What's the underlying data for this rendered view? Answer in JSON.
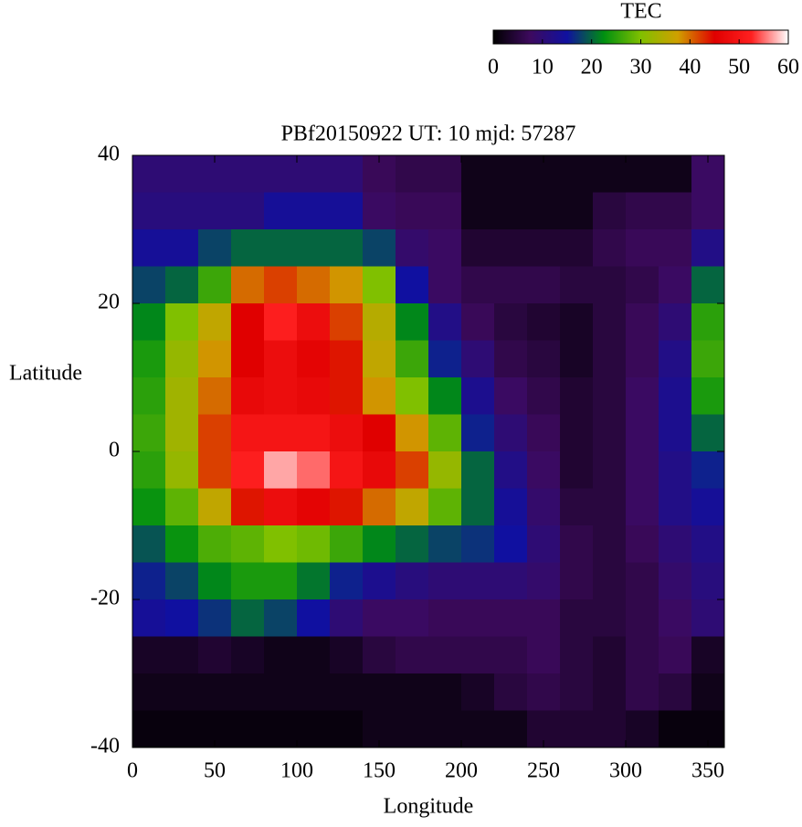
{
  "chart_data": {
    "type": "heatmap",
    "title": "PBf20150922  UT: 10  mjd: 57287",
    "xlabel": "Longitude",
    "ylabel": "Latitude",
    "colorbar_label": "TEC",
    "xlim": [
      0,
      360
    ],
    "ylim": [
      -40,
      40
    ],
    "xticks": [
      0,
      50,
      100,
      150,
      200,
      250,
      300,
      350
    ],
    "yticks": [
      -40,
      -20,
      0,
      20,
      40
    ],
    "zlim": [
      0,
      60
    ],
    "zticks": [
      0,
      10,
      20,
      30,
      40,
      50,
      60
    ],
    "colors": [
      "#000000",
      "#3d0a5e",
      "#1010a0",
      "#009010",
      "#80c000",
      "#d0a000",
      "#e00000",
      "#ff2020",
      "#ffffff"
    ],
    "x": [
      10,
      30,
      50,
      70,
      90,
      110,
      130,
      150,
      170,
      190,
      210,
      230,
      250,
      270,
      290,
      310,
      330,
      350
    ],
    "y": [
      37.5,
      32.5,
      27.5,
      22.5,
      17.5,
      12.5,
      7.5,
      2.5,
      -2.5,
      -7.5,
      -12.5,
      -17.5,
      -22.5,
      -27.5,
      -32.5,
      -37.5
    ],
    "z": [
      [
        10,
        10,
        10,
        10,
        10,
        10,
        10,
        7,
        6,
        6,
        2,
        2,
        2,
        2,
        2,
        2,
        2,
        8
      ],
      [
        11,
        11,
        11,
        11,
        14,
        14,
        14,
        8,
        7,
        7,
        2,
        2,
        2,
        2,
        5,
        6,
        6,
        8
      ],
      [
        14,
        14,
        18,
        20,
        20,
        20,
        20,
        18,
        9,
        8,
        4,
        4,
        4,
        4,
        6,
        7,
        7,
        12
      ],
      [
        18,
        20,
        26,
        40,
        42,
        40,
        38,
        30,
        15,
        8,
        6,
        6,
        6,
        5,
        5,
        6,
        8,
        20
      ],
      [
        22,
        30,
        36,
        45,
        52,
        48,
        42,
        35,
        22,
        12,
        7,
        5,
        4,
        3,
        5,
        7,
        10,
        25
      ],
      [
        24,
        32,
        38,
        45,
        48,
        46,
        44,
        36,
        26,
        16,
        10,
        6,
        5,
        3,
        5,
        7,
        12,
        26
      ],
      [
        25,
        33,
        40,
        47,
        48,
        47,
        44,
        38,
        30,
        22,
        13,
        8,
        6,
        4,
        5,
        8,
        13,
        24
      ],
      [
        26,
        33,
        42,
        50,
        50,
        50,
        48,
        45,
        38,
        28,
        16,
        10,
        7,
        4,
        5,
        8,
        13,
        20
      ],
      [
        25,
        32,
        42,
        52,
        57,
        55,
        50,
        47,
        42,
        32,
        20,
        12,
        8,
        4,
        5,
        8,
        12,
        16
      ],
      [
        23,
        28,
        36,
        44,
        48,
        46,
        44,
        40,
        36,
        28,
        20,
        14,
        9,
        5,
        5,
        8,
        12,
        14
      ],
      [
        19,
        23,
        27,
        28,
        30,
        29,
        26,
        22,
        20,
        18,
        17,
        15,
        10,
        6,
        5,
        7,
        10,
        12
      ],
      [
        16,
        18,
        22,
        24,
        24,
        21,
        16,
        13,
        11,
        10,
        10,
        10,
        9,
        6,
        5,
        6,
        9,
        11
      ],
      [
        14,
        15,
        17,
        20,
        18,
        15,
        10,
        8,
        8,
        7,
        7,
        7,
        7,
        5,
        5,
        6,
        8,
        10
      ],
      [
        3,
        3,
        4,
        3,
        2,
        2,
        3,
        5,
        6,
        6,
        6,
        6,
        7,
        5,
        4,
        6,
        7,
        3
      ],
      [
        2,
        2,
        2,
        2,
        2,
        2,
        2,
        2,
        2,
        2,
        3,
        5,
        6,
        5,
        4,
        6,
        5,
        2
      ],
      [
        1,
        1,
        1,
        1,
        1,
        1,
        1,
        2,
        2,
        2,
        2,
        2,
        4,
        4,
        4,
        3,
        1,
        1
      ]
    ]
  }
}
